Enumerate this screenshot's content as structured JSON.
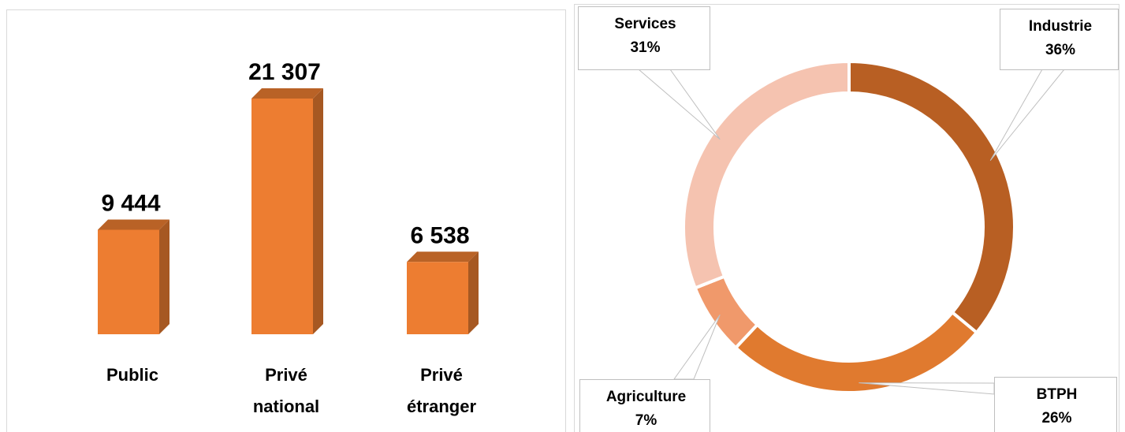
{
  "chart_data": [
    {
      "type": "bar",
      "categories": [
        "Public",
        "Privé national",
        "Privé étranger"
      ],
      "values": [
        9444,
        21307,
        6538
      ],
      "value_labels": [
        "9 444",
        "21 307",
        "6 538"
      ],
      "color": "#ed7d31"
    },
    {
      "type": "pie",
      "categories": [
        "Industrie",
        "BTPH",
        "Agriculture",
        "Services"
      ],
      "values": [
        36,
        26,
        7,
        31
      ],
      "value_labels": [
        "36%",
        "26%",
        "7%",
        "31%"
      ],
      "colors": [
        "#b85f23",
        "#e07a2f",
        "#f0996b",
        "#f5c3b0"
      ]
    }
  ]
}
